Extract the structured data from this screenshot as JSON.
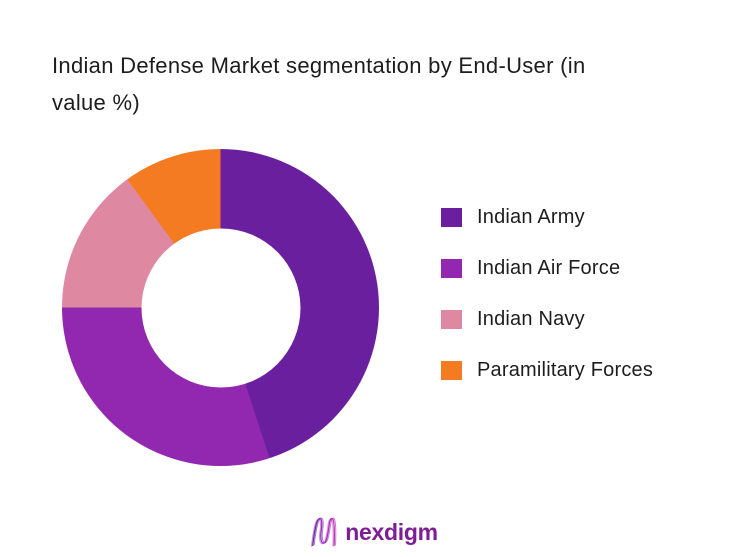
{
  "title": "Indian Defense Market segmentation by End-User (in value %)",
  "title_lines": [
    "Indian Defense Market segmentation by End-User (in",
    "value %)"
  ],
  "chart_data": {
    "type": "pie",
    "subtype": "donut",
    "title": "Indian Defense Market segmentation by End-User (in value %)",
    "categories": [
      "Indian Army",
      "Indian Air Force",
      "Indian Navy",
      "Paramilitary Forces"
    ],
    "values": [
      45,
      30,
      15,
      10
    ],
    "unit": "percent",
    "colors": [
      "#6A1F9E",
      "#9228B0",
      "#DE88A1",
      "#F47B21"
    ],
    "donut_hole_ratio": 0.5,
    "start_angle_deg": 0,
    "direction": "clockwise",
    "legend_position": "right",
    "data_labels_shown": false
  },
  "legend": {
    "items": [
      {
        "label": "Indian Army",
        "color": "#6A1F9E"
      },
      {
        "label": "Indian Air Force",
        "color": "#9228B0"
      },
      {
        "label": "Indian Navy",
        "color": "#DE88A1"
      },
      {
        "label": "Paramilitary Forces",
        "color": "#F47B21"
      }
    ]
  },
  "footer": {
    "brand": "nexdigm",
    "brand_color": "#7E1E96",
    "logo_icon": "nexdigm-wave-n-icon",
    "logo_gradient": [
      "#5F259F",
      "#C12BB5"
    ]
  },
  "background_color": "#FFFFFF"
}
